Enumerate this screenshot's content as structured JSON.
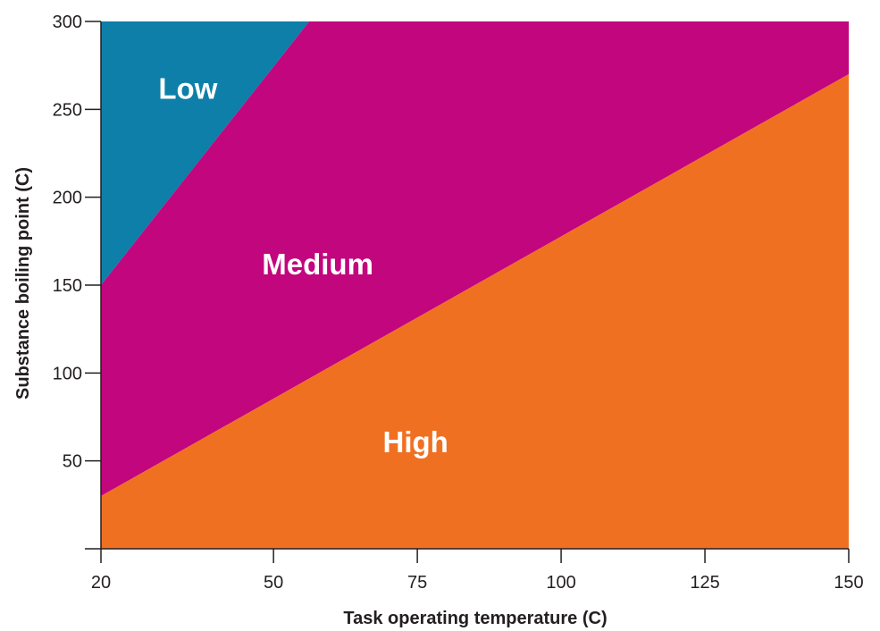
{
  "chart_data": {
    "type": "area",
    "xlabel": "Task operating temperature (C)",
    "ylabel": "Substance boiling point (C)",
    "xlim": [
      20,
      150
    ],
    "ylim": [
      0,
      300
    ],
    "x_ticks": [
      20,
      50,
      75,
      100,
      125,
      150
    ],
    "y_ticks": [
      50,
      100,
      150,
      200,
      250,
      300
    ],
    "grid": false,
    "boundaries": [
      {
        "between": [
          "High",
          "Medium"
        ],
        "points": [
          [
            20,
            30
          ],
          [
            150,
            270
          ]
        ]
      },
      {
        "between": [
          "Medium",
          "Low"
        ],
        "points": [
          [
            20,
            150
          ],
          [
            56.2,
            300
          ]
        ]
      }
    ],
    "regions": [
      {
        "name": "Low",
        "color": "#0d7fa8",
        "polygon": [
          [
            20,
            300
          ],
          [
            56.2,
            300
          ],
          [
            20,
            150
          ]
        ]
      },
      {
        "name": "Medium",
        "color": "#c1067e",
        "polygon": [
          [
            56.2,
            300
          ],
          [
            150,
            300
          ],
          [
            150,
            270
          ],
          [
            20,
            30
          ],
          [
            20,
            150
          ]
        ]
      },
      {
        "name": "High",
        "color": "#f07022",
        "polygon": [
          [
            20,
            0
          ],
          [
            150,
            0
          ],
          [
            150,
            270
          ],
          [
            20,
            30
          ]
        ]
      }
    ],
    "region_labels": [
      {
        "text": "Low",
        "x": 30,
        "y": 256
      },
      {
        "text": "Medium",
        "x": 48,
        "y": 156
      },
      {
        "text": "High",
        "x": 69,
        "y": 55
      }
    ]
  }
}
